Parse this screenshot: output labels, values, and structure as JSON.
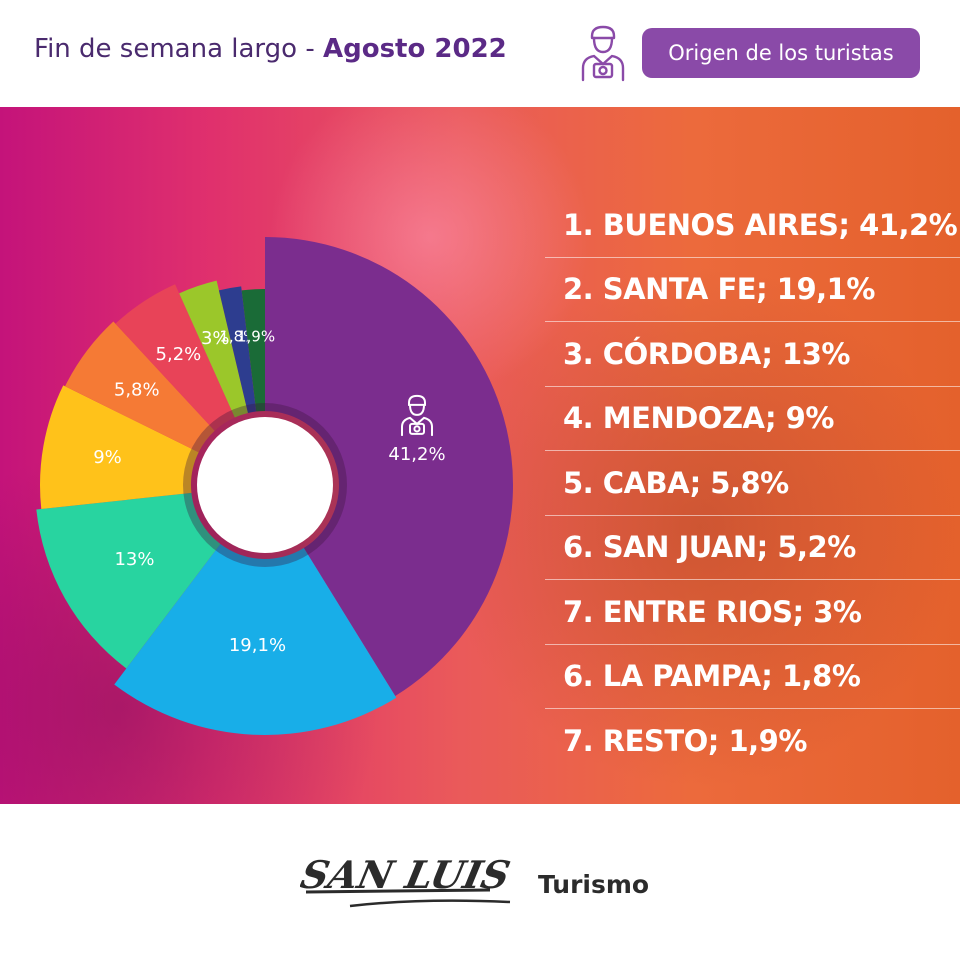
{
  "header": {
    "title_prefix": "Fin de semana largo - ",
    "title_bold": "Agosto 2022",
    "origin_button": "Origen de los turistas"
  },
  "chart_data": {
    "type": "pie",
    "categories": [
      "Buenos Aires",
      "Santa Fe",
      "Córdoba",
      "Mendoza",
      "CABA",
      "San Juan",
      "Entre Rios",
      "La Pampa",
      "Resto"
    ],
    "values": [
      41.2,
      19.1,
      13,
      9,
      5.8,
      5.2,
      3,
      1.8,
      1.9
    ],
    "labels": [
      "41,2%",
      "19,1%",
      "13%",
      "9%",
      "5,8%",
      "5,2%",
      "3%",
      "1,8%",
      "1,9%"
    ],
    "colors": [
      "#7b2d8e",
      "#18aee8",
      "#28d4a0",
      "#ffc21a",
      "#f57a35",
      "#e84358",
      "#9bc72a",
      "#2d3d8f",
      "#1a6b37"
    ],
    "legend_placement": "right"
  },
  "legend": [
    "1. BUENOS AIRES; 41,2%",
    "2. SANTA FE; 19,1%",
    "3. CÓRDOBA; 13%",
    "4. MENDOZA; 9%",
    "5. CABA; 5,8%",
    "6. SAN JUAN; 5,2%",
    "7. ENTRE RIOS; 3%",
    "6. LA PAMPA; 1,8%",
    "7. RESTO; 1,9%"
  ],
  "footer": {
    "logo_text": "SAN LUIS",
    "logo_suffix": "Turismo"
  },
  "icons": [
    "tourist-camera-icon"
  ]
}
